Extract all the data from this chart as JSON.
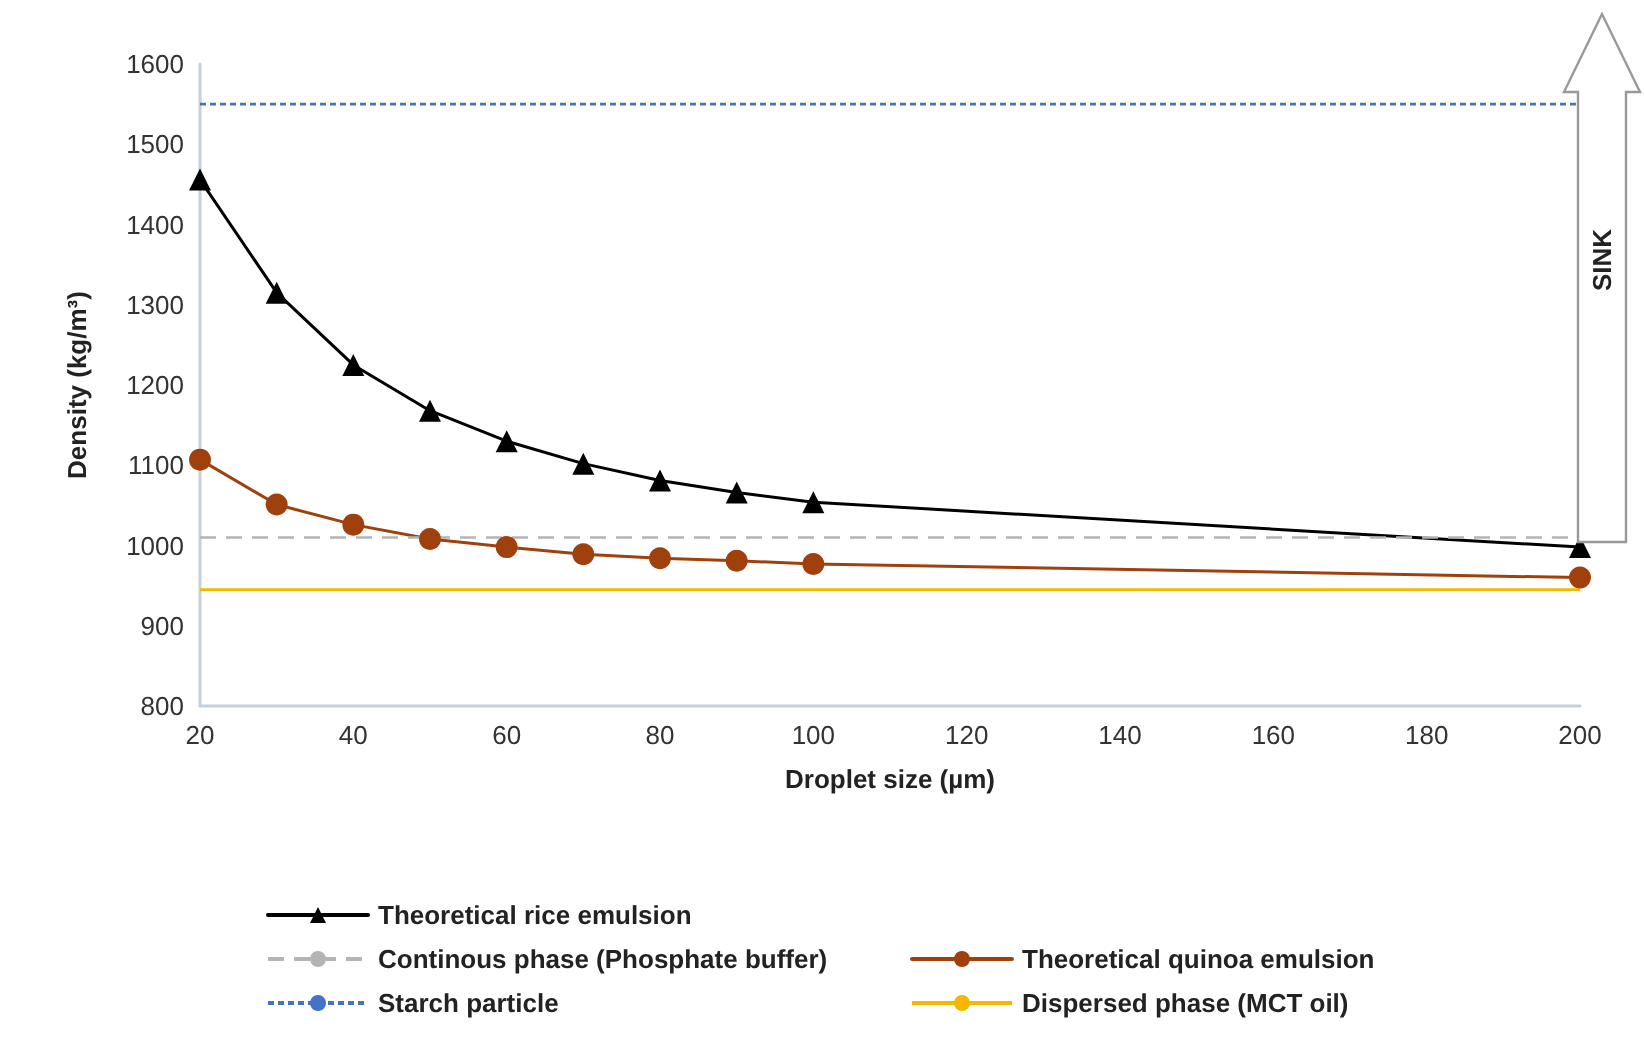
{
  "chart_data": {
    "type": "line",
    "xlabel": "Droplet size (µm)",
    "ylabel": "Density (kg/m³)",
    "x": [
      20,
      30,
      40,
      50,
      60,
      70,
      80,
      90,
      100,
      200
    ],
    "series": [
      {
        "name": "Theoretical rice emulsion",
        "color": "#000000",
        "marker": "triangle",
        "values": [
          1456,
          1315,
          1225,
          1168,
          1130,
          1102,
          1081,
          1066,
          1054,
          998
        ]
      },
      {
        "name": "Theoretical quinoa emulsion",
        "color": "#a0410d",
        "marker": "circle",
        "values": [
          1107,
          1051,
          1026,
          1008,
          998,
          989,
          984,
          981,
          977,
          960
        ]
      }
    ],
    "ref_lines": [
      {
        "axis": "y",
        "value": 1010,
        "label": "Continous phase (Phosphate buffer)",
        "color": "#b4b4b4",
        "line_style": "dashed"
      },
      {
        "axis": "y",
        "value": 945,
        "label": "Dispersed phase (MCT oil)",
        "color": "#f5b800",
        "line_style": "solid"
      },
      {
        "axis": "y",
        "value": 1550,
        "label": "Starch particle",
        "color": "#4472c4",
        "line_style": "dotted"
      }
    ],
    "xlim": [
      20,
      200
    ],
    "xticks": [
      20,
      40,
      60,
      80,
      100,
      120,
      140,
      160,
      180,
      200
    ],
    "ylim": [
      800,
      1600
    ],
    "yticks": [
      800,
      900,
      1000,
      1100,
      1200,
      1300,
      1400,
      1500,
      1600
    ],
    "grid": false,
    "legend": "bottom",
    "line_style": "solid",
    "annotations": [
      "SINK"
    ]
  }
}
